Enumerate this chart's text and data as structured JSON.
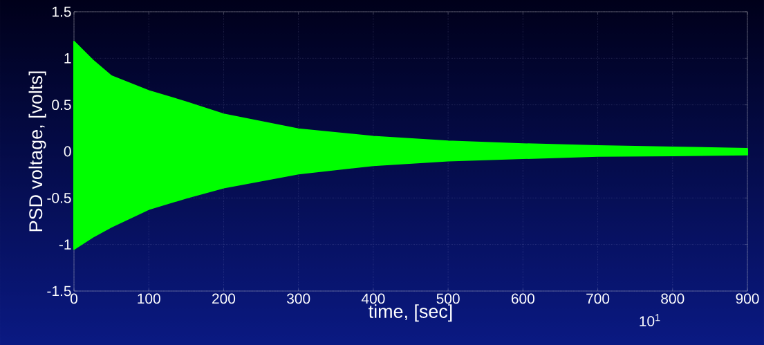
{
  "chart_data": {
    "type": "area",
    "xlabel": "time, [sec]",
    "ylabel": "PSD voltage, [volts]",
    "x": [
      0,
      25,
      50,
      100,
      150,
      200,
      300,
      400,
      500,
      600,
      700,
      800,
      900
    ],
    "series": [
      {
        "color": "#00ff00",
        "values": [
          1.18,
          0.98,
          0.81,
          0.65,
          0.53,
          0.4,
          0.24,
          0.16,
          0.11,
          0.08,
          0.06,
          0.045,
          0.03
        ]
      },
      {
        "color": "#00ff00",
        "values": [
          -1.05,
          -0.92,
          -0.81,
          -0.62,
          -0.5,
          -0.39,
          -0.24,
          -0.15,
          -0.1,
          -0.075,
          -0.05,
          -0.045,
          -0.035
        ]
      }
    ],
    "xlim": [
      0,
      900
    ],
    "ylim": [
      -1.5,
      1.5
    ],
    "xticks": [
      0,
      100,
      200,
      300,
      400,
      500,
      600,
      700,
      800,
      900
    ],
    "yticks": [
      -1.5,
      -1,
      -0.5,
      0,
      0.5,
      1,
      1.5
    ],
    "grid": true,
    "annotations": [
      "10$^{1}$"
    ]
  }
}
